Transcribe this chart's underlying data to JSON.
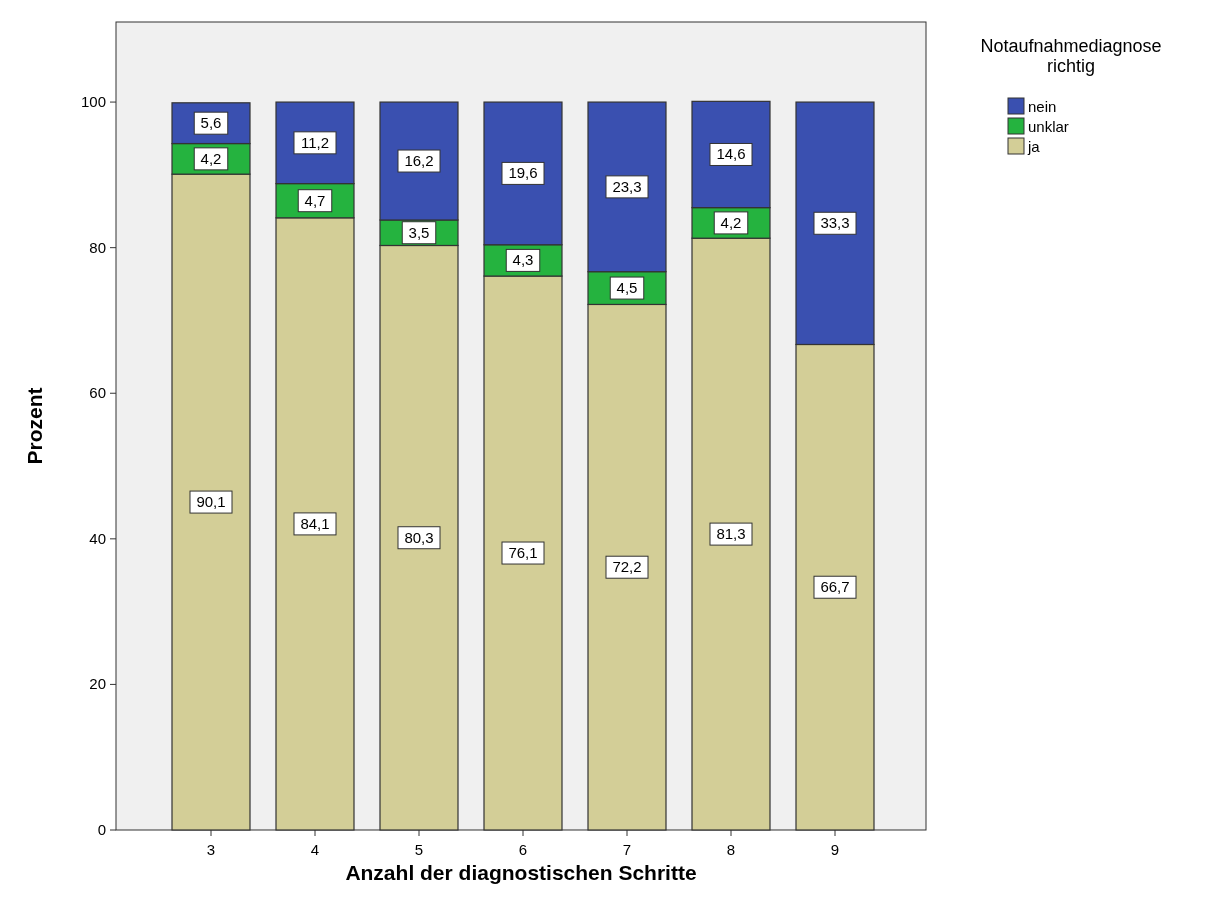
{
  "chart_data": {
    "type": "bar",
    "stacked": true,
    "xlabel": "Anzahl der diagnostischen Schritte",
    "ylabel": "Prozent",
    "legend_title": "Notaufnahmediagnose richtig",
    "legend": "top right",
    "categories": [
      "3",
      "4",
      "5",
      "6",
      "7",
      "8",
      "9"
    ],
    "ylim": [
      0,
      111
    ],
    "yticks": [
      0,
      20,
      40,
      60,
      80,
      100
    ],
    "series": [
      {
        "name": "ja",
        "color": "#d3ce97",
        "values": [
          90.1,
          84.1,
          80.3,
          76.1,
          72.2,
          81.3,
          66.7
        ],
        "value_labels": [
          "90,1",
          "84,1",
          "80,3",
          "76,1",
          "72,2",
          "81,3",
          "66,7"
        ]
      },
      {
        "name": "unklar",
        "color": "#25b33f",
        "values": [
          4.2,
          4.7,
          3.5,
          4.3,
          4.5,
          4.2,
          null
        ],
        "value_labels": [
          "4,2",
          "4,7",
          "3,5",
          "4,3",
          "4,5",
          "4,2",
          null
        ]
      },
      {
        "name": "nein",
        "color": "#3a50b0",
        "values": [
          5.6,
          11.2,
          16.2,
          19.6,
          23.3,
          14.6,
          33.3
        ],
        "value_labels": [
          "5,6",
          "11,2",
          "16,2",
          "19,6",
          "23,3",
          "14,6",
          "33,3"
        ]
      }
    ]
  }
}
